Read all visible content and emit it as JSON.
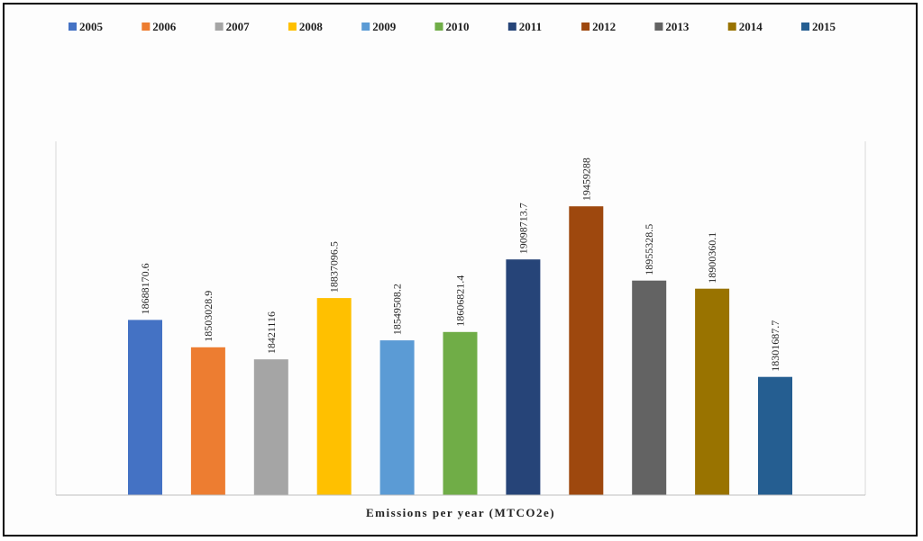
{
  "chart_data": {
    "type": "bar",
    "categories": [
      "2005",
      "2006",
      "2007",
      "2008",
      "2009",
      "2010",
      "2011",
      "2012",
      "2013",
      "2014",
      "2015"
    ],
    "values": [
      18688170.6,
      18503028.9,
      18421116,
      18837096.5,
      18549508.2,
      18606821.4,
      19098713.7,
      19459288,
      18955328.5,
      18900360.1,
      18301687.7
    ],
    "data_labels": [
      "18688170.6",
      "18503028.9",
      "18421116",
      "18837096.5",
      "18549508.2",
      "18606821.4",
      "19098713.7",
      "19459288",
      "18955328.5",
      "18900360.1",
      "18301687.7"
    ],
    "colors": [
      "#4472C4",
      "#ED7D31",
      "#A5A5A5",
      "#FFC000",
      "#5B9BD5",
      "#70AD47",
      "#264478",
      "#9E480E",
      "#636363",
      "#997300",
      "#255E91"
    ],
    "title": "",
    "xlabel": "Emissions per year (MTCO2e)",
    "ylabel": "",
    "ylim": [
      17500000,
      19900000
    ],
    "legend": "top",
    "grid": false
  }
}
